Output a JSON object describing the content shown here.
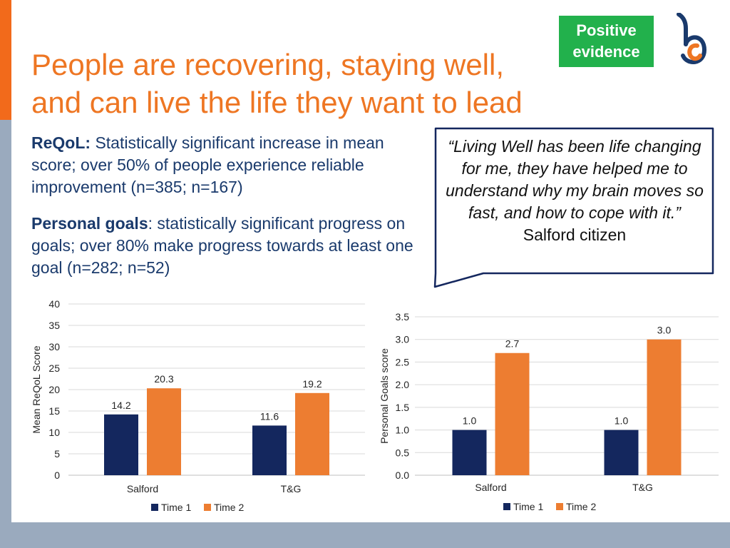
{
  "title": {
    "line1": "People are recovering, staying well,",
    "line2": "and can live the life they want to lead"
  },
  "badge": {
    "line1": "Positive",
    "line2": "evidence"
  },
  "logo": {
    "icon": "b-logo-icon",
    "colors": [
      "#1a3a6c",
      "#ee7623"
    ]
  },
  "bullets": [
    {
      "heading": "ReQoL:",
      "text": " Statistically significant increase in mean score; over 50% of people experience reliable improvement (n=385; n=167)"
    },
    {
      "heading": "Personal goals",
      "text": ": statistically significant progress on goals; over 80% make progress towards at least one goal (n=282; n=52)"
    }
  ],
  "quote": {
    "text": "“Living Well has been life changing for me, they have helped me to understand why my brain moves so fast, and how to cope with it.”",
    "attribution": "Salford citizen"
  },
  "colors": {
    "time1": "#14275e",
    "time2": "#ed7d31",
    "title": "#ee7623",
    "badge": "#22b14c",
    "text": "#1a3a6c"
  },
  "chart_data": [
    {
      "type": "bar",
      "title": "",
      "xlabel": "",
      "ylabel": "Mean ReQoL Score",
      "categories": [
        "Salford",
        "T&G"
      ],
      "series": [
        {
          "name": "Time 1",
          "values": [
            14.2,
            11.6
          ],
          "labels": [
            "14.2",
            "11.6"
          ]
        },
        {
          "name": "Time 2",
          "values": [
            20.3,
            19.2
          ],
          "labels": [
            "20.3",
            "19.2"
          ]
        }
      ],
      "ylim": [
        0,
        40
      ],
      "yticks": [
        "0",
        "5",
        "10",
        "15",
        "20",
        "25",
        "30",
        "35",
        "40"
      ],
      "grid": true,
      "legend": "bottom"
    },
    {
      "type": "bar",
      "title": "",
      "xlabel": "",
      "ylabel": "Personal Goals score",
      "categories": [
        "Salford",
        "T&G"
      ],
      "series": [
        {
          "name": "Time 1",
          "values": [
            1.0,
            1.0
          ],
          "labels": [
            "1.0",
            "1.0"
          ]
        },
        {
          "name": "Time 2",
          "values": [
            2.7,
            3.0
          ],
          "labels": [
            "2.7",
            "3.0"
          ]
        }
      ],
      "ylim": [
        0,
        3.5
      ],
      "yticks": [
        "0.0",
        "0.5",
        "1.0",
        "1.5",
        "2.0",
        "2.5",
        "3.0",
        "3.5"
      ],
      "grid": true,
      "legend": "bottom"
    }
  ]
}
